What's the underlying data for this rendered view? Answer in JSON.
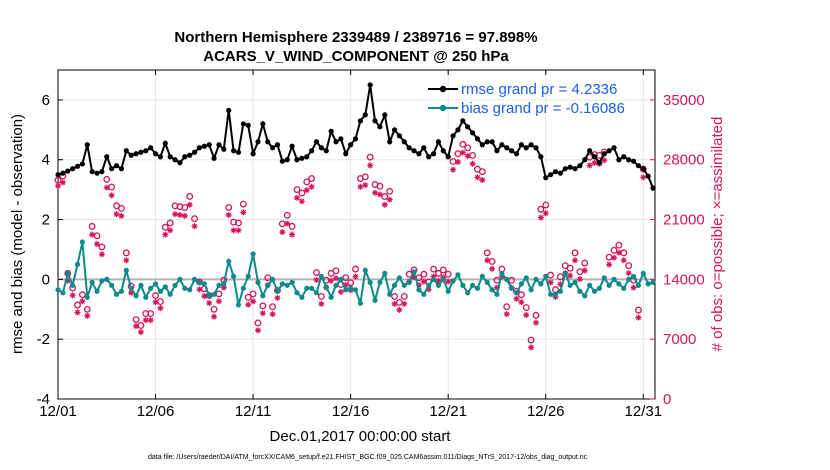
{
  "chart_data": {
    "type": "line",
    "title_line1": "Northern Hemisphere 2339489 / 2389716 = 97.898%",
    "title_line2": "ACARS_V_WIND_COMPONENT @ 250 hPa",
    "xlabel": "Dec.01,2017 00:00:00 start",
    "ylabel": "rmse and bias (model - observation)",
    "ylabel_right": "# of obs: o=possible; ×=assimilated",
    "footnote": "data file: /Users/raeder/DAI/ATM_forcXX/CAM6_setup/f.e21.FHIST_BGC.f09_025.CAM6assim.011/Diags_NTrS_2017-12/obs_diag_output.nc",
    "x_ticks": [
      {
        "pos": 1,
        "label": "12/01"
      },
      {
        "pos": 6,
        "label": "12/06"
      },
      {
        "pos": 11,
        "label": "12/11"
      },
      {
        "pos": 16,
        "label": "12/16"
      },
      {
        "pos": 21,
        "label": "12/21"
      },
      {
        "pos": 26,
        "label": "12/26"
      },
      {
        "pos": 31,
        "label": "12/31"
      }
    ],
    "xlim": [
      1,
      31.6
    ],
    "ylim": [
      -4,
      7
    ],
    "y_ticks": [
      "-4",
      "-2",
      "0",
      "2",
      "4",
      "6"
    ],
    "y_tick_values": [
      -4,
      -2,
      0,
      2,
      4,
      6
    ],
    "ylim_right": [
      0,
      38500
    ],
    "y_ticks_right": [
      "0",
      "7000",
      "14000",
      "21000",
      "28000",
      "35000"
    ],
    "y_tick_values_right": [
      0,
      7000,
      14000,
      21000,
      28000,
      35000
    ],
    "legend": {
      "location": "top-right",
      "rmse_label": "rmse grand pr = 4.2336",
      "bias_label": "bias grand pr = -0.16086"
    },
    "colors": {
      "rmse": "#000000",
      "bias": "#0f8a8a",
      "obs": "#d6145c",
      "zero_line": "#b3b3b3"
    },
    "series": [
      {
        "name": "rmse",
        "x_start": 1.0,
        "x_step": 0.25,
        "values": [
          3.5,
          3.55,
          3.62,
          3.7,
          3.78,
          3.86,
          4.5,
          3.6,
          3.55,
          3.6,
          4.1,
          3.7,
          3.8,
          3.7,
          4.3,
          4.15,
          4.2,
          4.25,
          4.3,
          4.4,
          4.2,
          4.1,
          4.55,
          4.1,
          4.0,
          3.9,
          4.1,
          4.15,
          4.25,
          4.4,
          4.45,
          4.5,
          4.05,
          4.5,
          4.35,
          5.65,
          4.3,
          4.25,
          5.2,
          5.15,
          4.2,
          4.6,
          5.2,
          4.6,
          4.4,
          4.5,
          3.95,
          4.0,
          4.45,
          4.0,
          4.05,
          4.1,
          4.3,
          4.6,
          4.4,
          4.3,
          4.95,
          4.6,
          4.7,
          4.2,
          4.5,
          4.7,
          5.3,
          5.5,
          6.5,
          5.3,
          5.1,
          5.5,
          4.6,
          5.0,
          4.8,
          4.6,
          4.4,
          4.3,
          4.2,
          4.4,
          4.1,
          4.2,
          4.6,
          4.3,
          4.1,
          4.8,
          5.0,
          5.3,
          5.1,
          4.9,
          4.7,
          4.5,
          4.6,
          4.6,
          4.3,
          4.5,
          4.4,
          4.3,
          4.2,
          4.5,
          4.4,
          4.5,
          4.4,
          4.1,
          3.4,
          3.5,
          3.6,
          3.55,
          3.7,
          3.75,
          3.7,
          3.8,
          4.0,
          4.3,
          4.1,
          3.9,
          4.2,
          4.3,
          4.4,
          4.0,
          4.1,
          4.0,
          3.95,
          3.8,
          3.7,
          3.45,
          3.05
        ]
      },
      {
        "name": "bias",
        "x_start": 1.0,
        "x_step": 0.25,
        "values": [
          -0.35,
          -0.45,
          0.2,
          -0.2,
          0.5,
          1.25,
          -0.6,
          -0.1,
          -0.4,
          -0.05,
          0.0,
          -0.2,
          -0.5,
          -0.4,
          0.3,
          -0.3,
          -0.55,
          -0.2,
          -0.6,
          -0.3,
          -0.15,
          -0.4,
          -0.25,
          -0.5,
          -0.2,
          0.0,
          -0.3,
          -0.35,
          0.0,
          -0.1,
          -0.15,
          -0.55,
          -0.5,
          -0.2,
          -0.15,
          0.6,
          0.1,
          -0.85,
          -0.3,
          0.1,
          0.85,
          -0.1,
          -0.55,
          -0.2,
          0.0,
          -0.4,
          -0.15,
          -0.2,
          -0.1,
          -0.45,
          -0.6,
          -0.3,
          -0.3,
          -0.45,
          0.1,
          -0.25,
          -0.6,
          -0.2,
          0.0,
          -0.35,
          -0.3,
          -0.35,
          -0.8,
          0.3,
          -0.1,
          -0.7,
          -0.1,
          0.2,
          -0.5,
          -0.2,
          0.05,
          -0.2,
          -0.1,
          0.25,
          -0.35,
          -0.5,
          -0.2,
          0.0,
          -0.2,
          0.0,
          -0.4,
          -0.05,
          0.15,
          -0.2,
          -0.45,
          -0.2,
          -0.3,
          0.1,
          -0.1,
          -0.35,
          -0.5,
          0.2,
          0.0,
          -0.3,
          -0.45,
          -0.15,
          0.05,
          -0.35,
          0.0,
          -0.15,
          0.1,
          -0.5,
          -0.5,
          -0.4,
          0.2,
          -0.2,
          -0.1,
          -0.4,
          -0.55,
          -0.2,
          -0.4,
          -0.3,
          0.05,
          -0.2,
          0.0,
          -0.15,
          -0.3,
          0.0,
          0.1,
          -0.2,
          0.2,
          -0.15,
          -0.1
        ]
      },
      {
        "name": "obs_possible",
        "x_start": 1.0,
        "x_step": 0.25,
        "values": [
          25600,
          26100,
          14700,
          13000,
          11000,
          12200,
          10500,
          20200,
          19100,
          17800,
          25700,
          24800,
          22600,
          22300,
          17100,
          13200,
          9300,
          8600,
          10000,
          10000,
          12100,
          11400,
          20100,
          20600,
          22600,
          22500,
          22400,
          23700,
          21100,
          13700,
          12900,
          12100,
          10500,
          12300,
          13900,
          22400,
          20700,
          20600,
          22800,
          11900,
          12300,
          8900,
          10900,
          14200,
          10800,
          12700,
          20500,
          21500,
          20200,
          24500,
          24100,
          25400,
          25800,
          14800,
          12000,
          13900,
          14700,
          15000,
          13400,
          14200,
          13600,
          15200,
          25800,
          26000,
          28300,
          25100,
          24900,
          23700,
          24300,
          12000,
          11300,
          12000,
          14600,
          15100,
          14200,
          14600,
          13700,
          15200,
          14700,
          15100,
          14600,
          27800,
          28700,
          29800,
          29400,
          28500,
          26900,
          26600,
          17100,
          16100,
          13900,
          15200,
          10800,
          13900,
          12600,
          12200,
          10700,
          6900,
          9800,
          22200,
          22700,
          14500,
          12800,
          14300,
          15600,
          15300,
          17100,
          14900,
          15900,
          28300,
          28600,
          28500,
          28900,
          16600,
          17400,
          18000,
          17100,
          15600,
          13900,
          10400,
          26900
        ]
      },
      {
        "name": "obs_assimilated",
        "x_start": 1.0,
        "x_step": 0.25,
        "values": [
          25400,
          25800,
          14300,
          12600,
          10600,
          11900,
          10200,
          19700,
          18600,
          17400,
          25200,
          24300,
          22100,
          21900,
          16700,
          12900,
          9000,
          8300,
          9700,
          9700,
          11800,
          11100,
          19700,
          20200,
          22100,
          22000,
          21900,
          23200,
          20700,
          13300,
          12500,
          11700,
          10100,
          11900,
          13500,
          22000,
          20200,
          20200,
          22300,
          11500,
          11900,
          8500,
          10500,
          13800,
          10400,
          12300,
          20000,
          21000,
          19700,
          24000,
          23600,
          24900,
          25300,
          14400,
          11600,
          13500,
          14300,
          14600,
          13000,
          13800,
          13200,
          14800,
          25300,
          25500,
          27800,
          24600,
          24400,
          23200,
          23800,
          11600,
          10900,
          11600,
          14200,
          14700,
          13800,
          14200,
          13300,
          14800,
          14300,
          14700,
          14200,
          27300,
          28200,
          29300,
          28900,
          28000,
          26400,
          26100,
          16700,
          15700,
          13500,
          14800,
          10400,
          13500,
          12200,
          11800,
          10300,
          6500,
          9400,
          21700,
          22200,
          14100,
          12400,
          13900,
          15200,
          14900,
          16700,
          14500,
          15500,
          27800,
          28100,
          28000,
          28400,
          16200,
          17000,
          17600,
          16700,
          15200,
          13500,
          10000,
          26400
        ]
      }
    ]
  }
}
